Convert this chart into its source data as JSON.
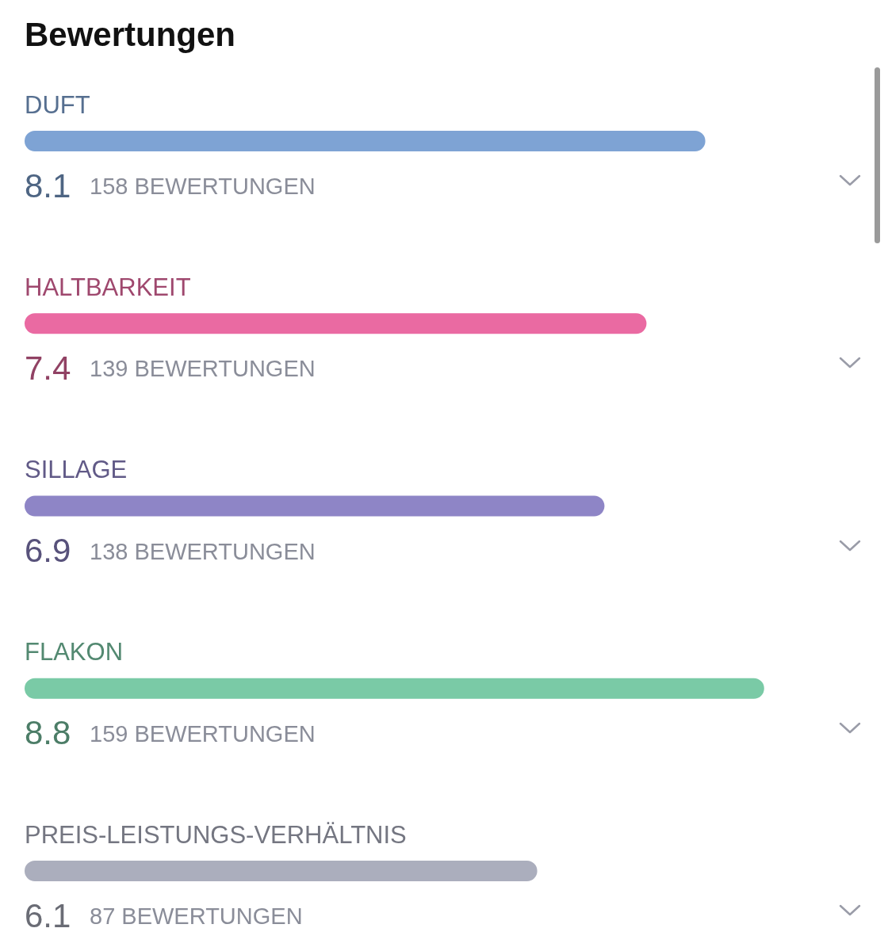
{
  "chart_data": {
    "type": "bar",
    "orientation": "horizontal",
    "title": "Bewertungen",
    "categories": [
      "DUFT",
      "HALTBARKEIT",
      "SILLAGE",
      "FLAKON",
      "PREIS-LEISTUNGS-VERHÄLTNIS"
    ],
    "values": [
      8.1,
      7.4,
      6.9,
      8.8,
      6.1
    ],
    "colors": [
      "#7ea3d4",
      "#ea6aa2",
      "#8e85c6",
      "#7acaa6",
      "#abaebd"
    ],
    "data_labels": true,
    "annotations": [
      "158 BEWERTUNGEN",
      "139 BEWERTUNGEN",
      "138 BEWERTUNGEN",
      "159 BEWERTUNGEN",
      "87 BEWERTUNGEN"
    ]
  }
}
